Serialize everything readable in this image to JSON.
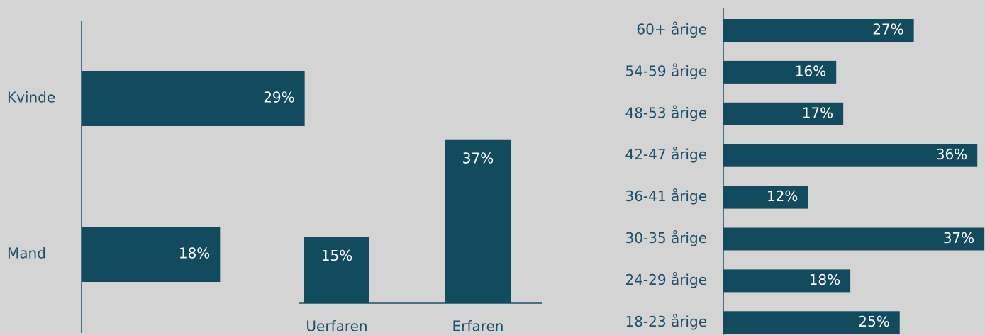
{
  "chart_data": [
    {
      "type": "hbar",
      "categories": [
        "Kvinde",
        "Mand"
      ],
      "values": [
        29,
        18
      ],
      "value_labels": [
        "29%",
        "18%"
      ],
      "color": "#124b5e"
    },
    {
      "type": "bar",
      "categories": [
        "Uerfaren",
        "Erfaren"
      ],
      "values": [
        15,
        37
      ],
      "value_labels": [
        "15%",
        "37%"
      ],
      "color": "#124b5e"
    },
    {
      "type": "hbar",
      "categories": [
        "60+ årige",
        "54-59 årige",
        "48-53 årige",
        "42-47 årige",
        "36-41 årige",
        "30-35 årige",
        "24-29 årige",
        "18-23 årige"
      ],
      "values": [
        27,
        16,
        17,
        36,
        12,
        37,
        18,
        25
      ],
      "value_labels": [
        "27%",
        "16%",
        "17%",
        "36%",
        "12%",
        "37%",
        "18%",
        "25%"
      ],
      "color": "#124b5e"
    }
  ]
}
